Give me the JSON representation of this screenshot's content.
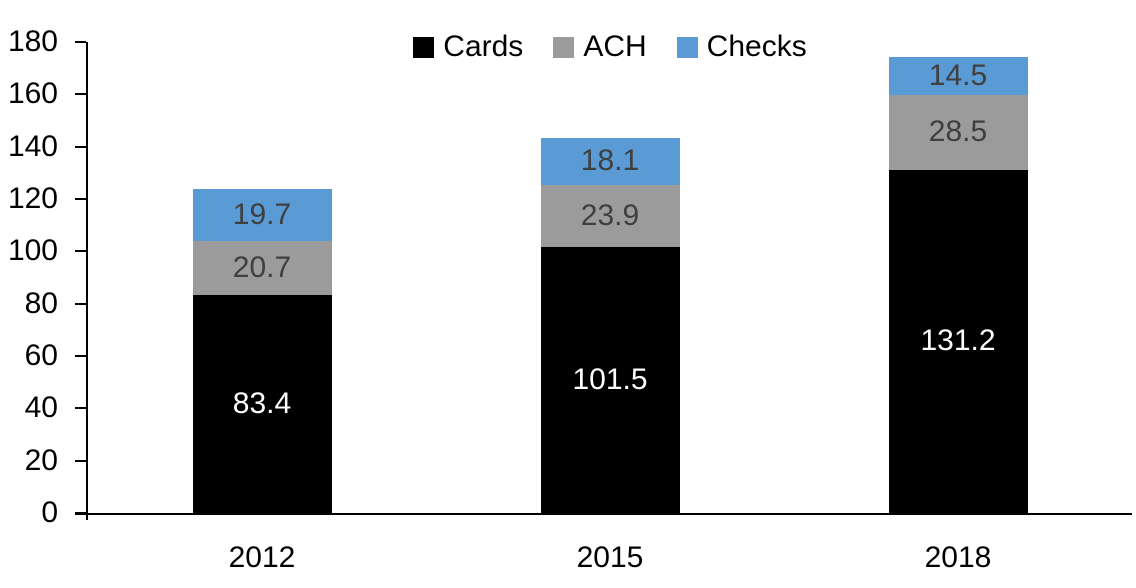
{
  "chart_data": {
    "type": "bar",
    "stacked": true,
    "title": "",
    "categories": [
      "2012",
      "2015",
      "2018"
    ],
    "series": [
      {
        "name": "Cards",
        "values": [
          83.4,
          101.5,
          131.2
        ],
        "color": "#000000",
        "label_color": "#FFFFFF"
      },
      {
        "name": "ACH",
        "values": [
          20.7,
          23.9,
          28.5
        ],
        "color": "#9B9B9B",
        "label_color": "#3F3F3F"
      },
      {
        "name": "Checks",
        "values": [
          19.7,
          18.1,
          14.5
        ],
        "color": "#5B9BD5",
        "label_color": "#3F3F3F"
      }
    ],
    "ylim": [
      0,
      180
    ],
    "yticks": [
      0,
      20,
      40,
      60,
      80,
      100,
      120,
      140,
      160,
      180
    ],
    "value_label_decimals": 1,
    "legend_position": "top-center",
    "legend_order": [
      "Cards",
      "ACH",
      "Checks"
    ],
    "grid": false,
    "axis_color": "#000000",
    "background_color": "#FFFFFF"
  }
}
